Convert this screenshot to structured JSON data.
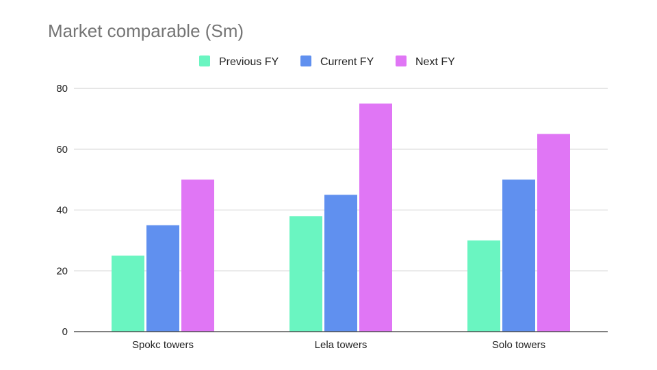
{
  "chart_data": {
    "type": "bar",
    "title": "Market comparable (Sm)",
    "categories": [
      "Spokc towers",
      "Lela towers",
      "Solo towers"
    ],
    "series": [
      {
        "name": "Previous FY",
        "color": "#6af5c1",
        "values": [
          25,
          38,
          30
        ]
      },
      {
        "name": "Current FY",
        "color": "#6090ef",
        "values": [
          35,
          45,
          50
        ]
      },
      {
        "name": "Next FY",
        "color": "#e076f5",
        "values": [
          50,
          75,
          65
        ]
      }
    ],
    "ylim": [
      0,
      80
    ],
    "yticks": [
      0,
      20,
      40,
      60,
      80
    ],
    "ytick_labels": [
      "0",
      "20",
      "40",
      "60",
      "80"
    ],
    "xlabel": "",
    "ylabel": "",
    "grid": true,
    "legend_position": "top-center"
  }
}
